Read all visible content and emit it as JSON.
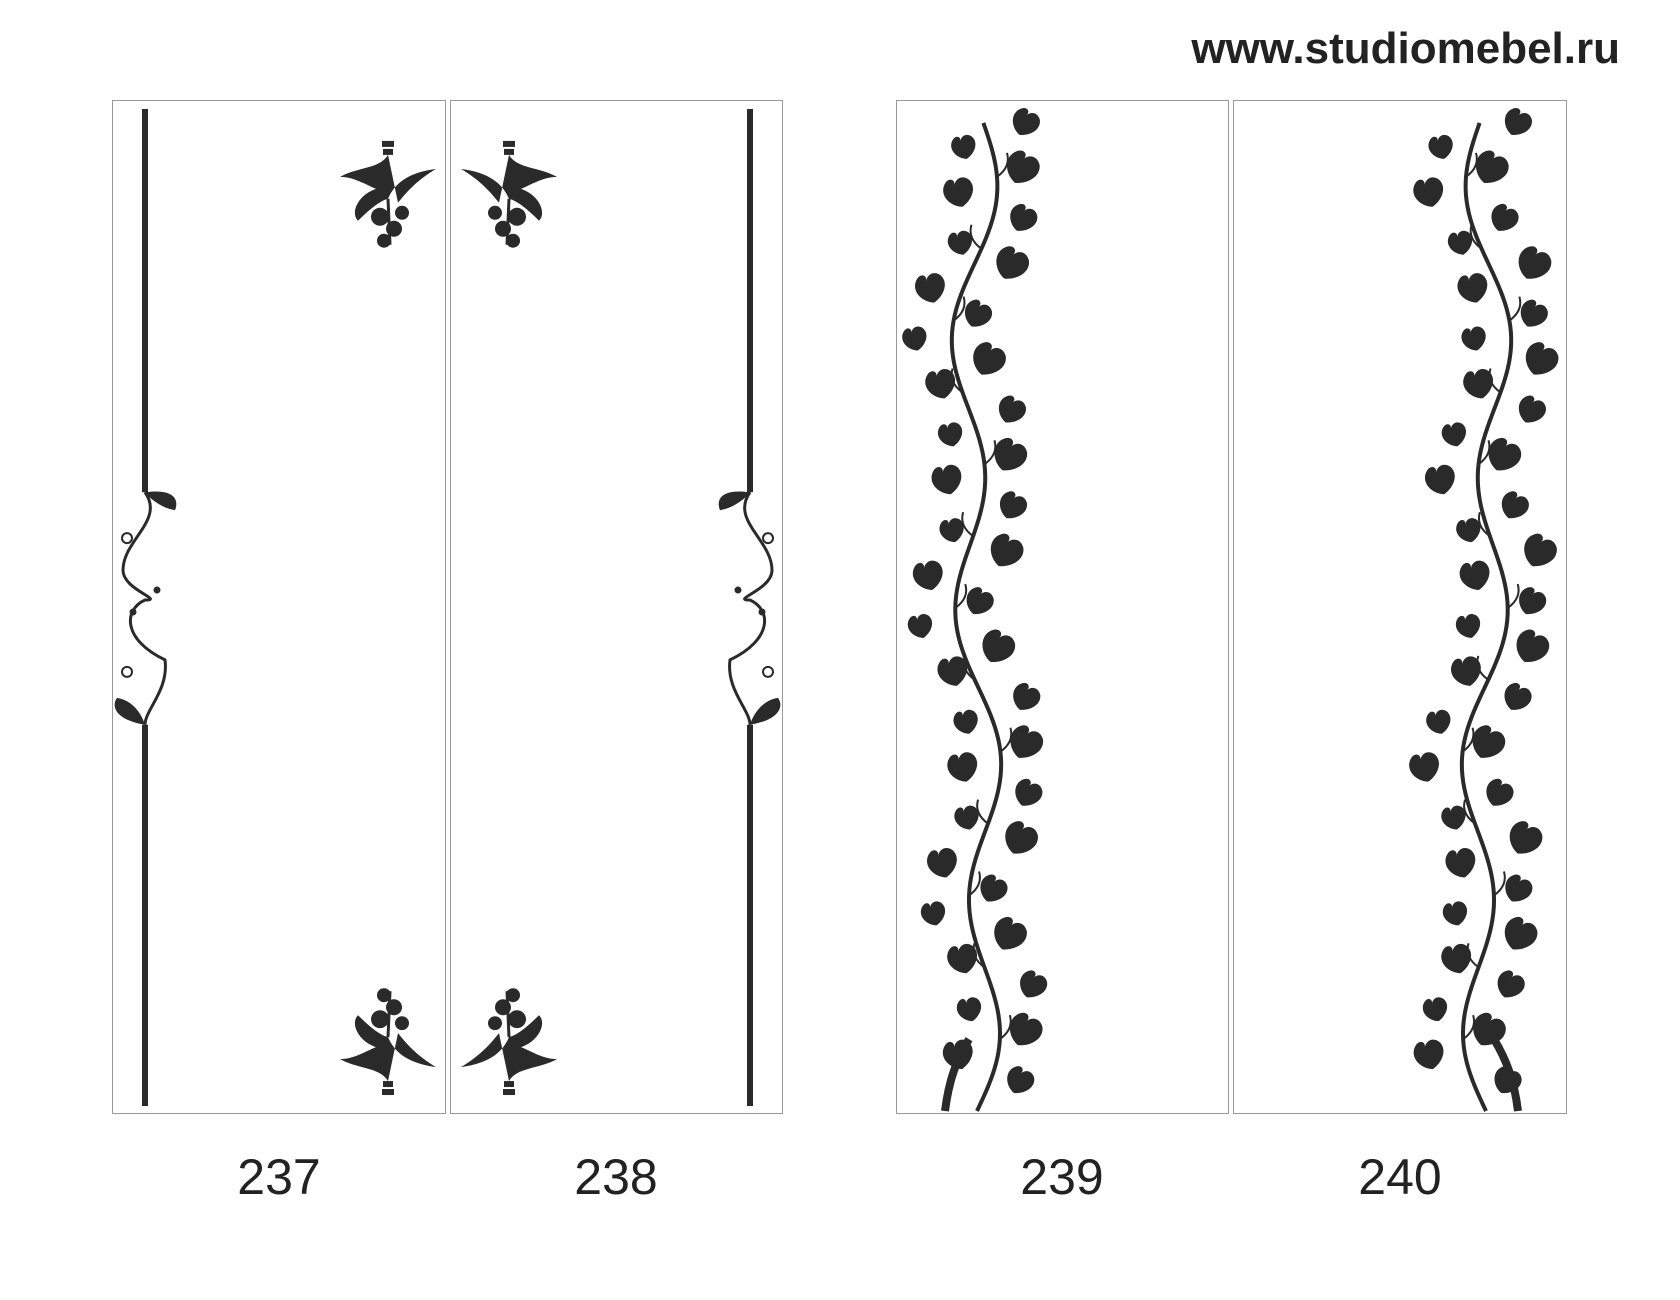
{
  "header": {
    "url": "www.studiomebel.ru"
  },
  "colors": {
    "ornament": "#2a2a2a",
    "frame": "#9a9a9a"
  },
  "panels": [
    {
      "number": "237",
      "design": "rod-with-scroll-and-flowers",
      "side": "left"
    },
    {
      "number": "238",
      "design": "rod-with-scroll-and-flowers",
      "side": "right"
    },
    {
      "number": "239",
      "design": "climbing-vine",
      "side": "left"
    },
    {
      "number": "240",
      "design": "climbing-vine",
      "side": "right"
    }
  ]
}
